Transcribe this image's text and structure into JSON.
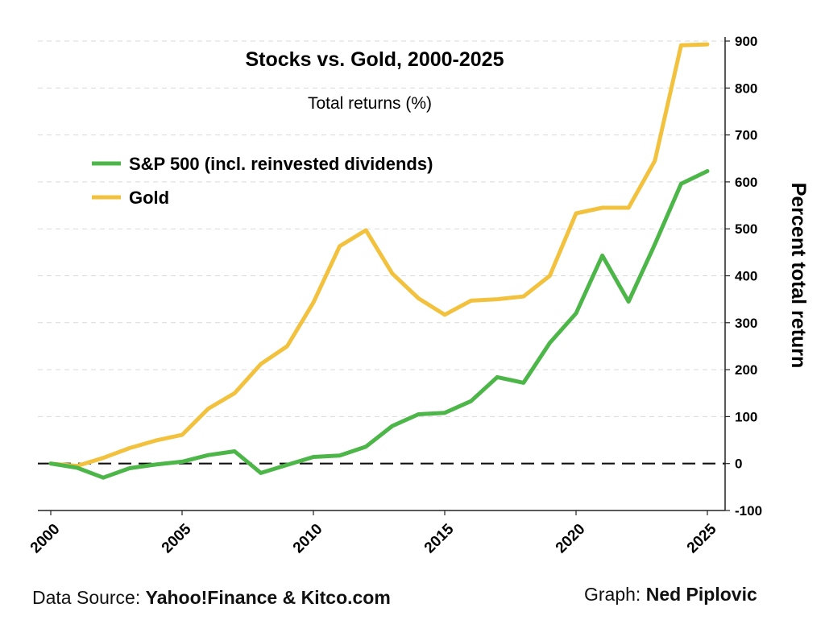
{
  "chart_data": {
    "type": "line",
    "title": "Stocks vs. Gold, 2000-2025",
    "subtitle": "Total returns (%)",
    "ylabel": "Percent total return",
    "xlabel": "",
    "xlim": [
      2000,
      2025
    ],
    "ylim": [
      -100,
      900
    ],
    "x_ticks": [
      "2000",
      "2005",
      "2010",
      "2015",
      "2020",
      "2025"
    ],
    "y_ticks": [
      "900",
      "800",
      "700",
      "600",
      "500",
      "400",
      "300",
      "200",
      "100",
      "0",
      "-100"
    ],
    "grid": true,
    "legend_position": "top-left",
    "x": [
      2000,
      2001,
      2002,
      2003,
      2004,
      2005,
      2006,
      2007,
      2008,
      2009,
      2010,
      2011,
      2012,
      2013,
      2014,
      2015,
      2016,
      2017,
      2018,
      2019,
      2020,
      2021,
      2022,
      2023,
      2024,
      2025
    ],
    "series": [
      {
        "name": "S&P 500 (incl. reinvested dividends)",
        "color": "#4cb648",
        "values": [
          0,
          -9,
          -30,
          -10,
          -2,
          4,
          18,
          26,
          -20,
          -3,
          14,
          17,
          36,
          80,
          105,
          108,
          133,
          184,
          172,
          257,
          320,
          443,
          345,
          467,
          596,
          623
        ]
      },
      {
        "name": "Gold",
        "color": "#f2c23f",
        "values": [
          0,
          -5,
          12,
          33,
          49,
          61,
          117,
          150,
          212,
          250,
          343,
          463,
          497,
          405,
          352,
          317,
          347,
          350,
          356,
          400,
          533,
          545,
          545,
          645,
          891,
          893
        ]
      }
    ],
    "zero_line": {
      "value": 0,
      "style": "dashed"
    }
  },
  "footer": {
    "source_prefix": "Data Source: ",
    "source_name": "Yahoo!Finance & Kitco.com",
    "graph_prefix": "Graph: ",
    "graph_author": "Ned Piplovic"
  }
}
